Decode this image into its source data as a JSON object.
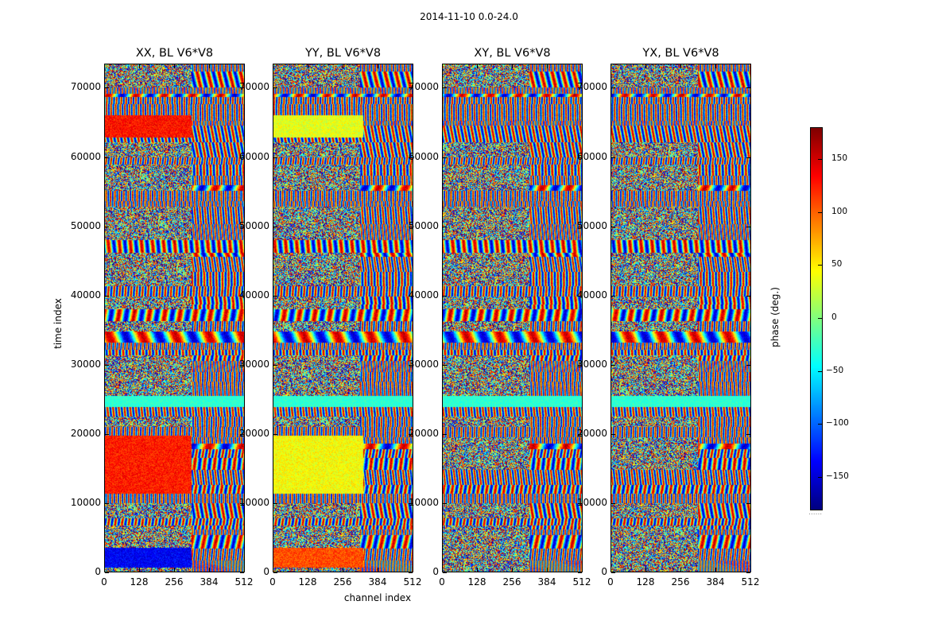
{
  "chart_data": [
    {
      "type": "heatmap",
      "title": "XX, BL V6*V8",
      "suptitle": "2014-11-10 0.0-24.0",
      "xlabel": "channel index",
      "ylabel": "time index",
      "xlim": [
        0,
        512
      ],
      "ylim": [
        0,
        73500
      ],
      "xticks": [
        "0",
        "128",
        "256",
        "384",
        "512"
      ],
      "yticks": [
        "0",
        "10000",
        "20000",
        "30000",
        "40000",
        "50000",
        "60000",
        "70000"
      ]
    },
    {
      "type": "heatmap",
      "title": "YY, BL V6*V8",
      "xlim": [
        0,
        512
      ],
      "ylim": [
        0,
        73500
      ],
      "xticks": [
        "0",
        "128",
        "256",
        "384",
        "512"
      ],
      "yticks": [
        "0",
        "10000",
        "20000",
        "30000",
        "40000",
        "50000",
        "60000",
        "70000"
      ]
    },
    {
      "type": "heatmap",
      "title": "XY, BL V6*V8",
      "xlim": [
        0,
        512
      ],
      "ylim": [
        0,
        73500
      ],
      "xticks": [
        "0",
        "128",
        "256",
        "384",
        "512"
      ],
      "yticks": [
        "0",
        "10000",
        "20000",
        "30000",
        "40000",
        "50000",
        "60000",
        "70000"
      ]
    },
    {
      "type": "heatmap",
      "title": "YX, BL V6*V8",
      "xlim": [
        0,
        512
      ],
      "ylim": [
        0,
        73500
      ],
      "xticks": [
        "0",
        "128",
        "256",
        "384",
        "512"
      ],
      "yticks": [
        "0",
        "10000",
        "20000",
        "30000",
        "40000",
        "50000",
        "60000",
        "70000"
      ]
    }
  ],
  "colorbar": {
    "label": "phase (deg.)",
    "range": [
      -180,
      180
    ],
    "colormap": "jet",
    "ticks": [
      "150",
      "100",
      "50",
      "0",
      "−50",
      "−100",
      "−150"
    ],
    "tick_values": [
      150,
      100,
      50,
      0,
      -50,
      -100,
      -150
    ],
    "extra": "......"
  }
}
